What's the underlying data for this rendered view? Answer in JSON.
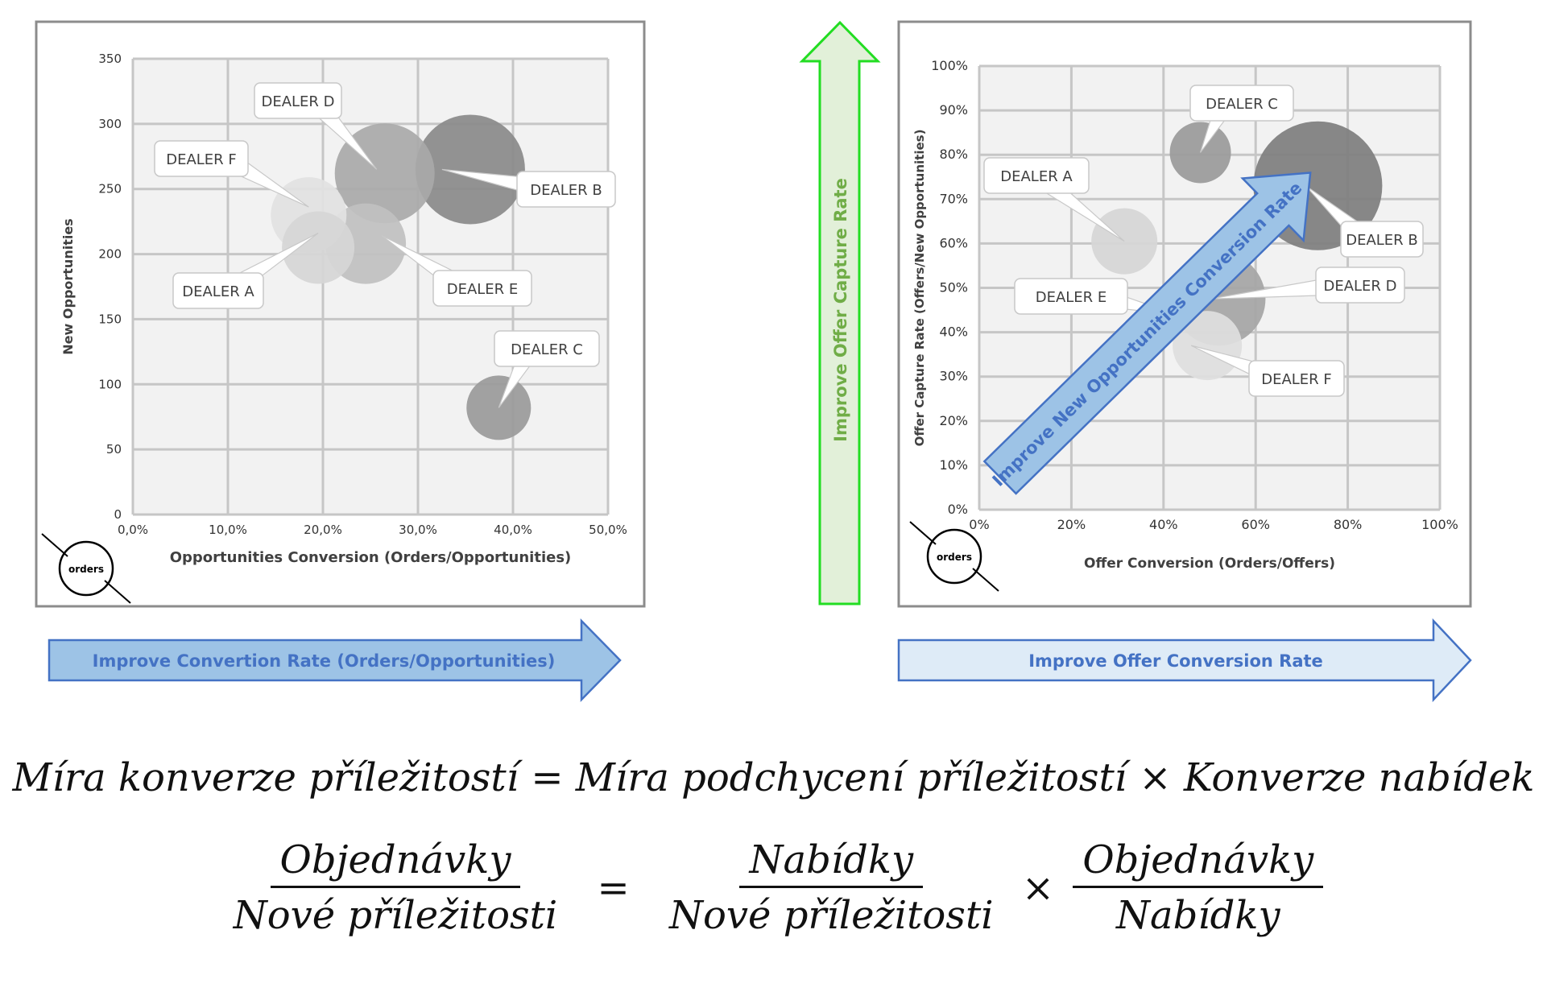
{
  "chart_data": [
    {
      "type": "bubble",
      "xlabel": "Opportunities Conversion (Orders/Opportunities)",
      "ylabel": "New Opportunities",
      "xlim": [
        0,
        50
      ],
      "ylim": [
        0,
        350
      ],
      "x_ticks": [
        "0,0%",
        "10,0%",
        "20,0%",
        "30,0%",
        "40,0%",
        "50,0%"
      ],
      "y_ticks": [
        "0",
        "50",
        "100",
        "150",
        "200",
        "250",
        "300",
        "350"
      ],
      "grid": true,
      "size_legend": "orders",
      "points": [
        {
          "label": "DEALER A",
          "x": 19.5,
          "y": 205,
          "r": 45,
          "color": "#d6d6d6"
        },
        {
          "label": "DEALER B",
          "x": 35.5,
          "y": 265,
          "r": 68,
          "color": "#8a8a8a"
        },
        {
          "label": "DEALER C",
          "x": 38.5,
          "y": 82,
          "r": 40,
          "color": "#9a9a9a"
        },
        {
          "label": "DEALER D",
          "x": 26.5,
          "y": 262,
          "r": 62,
          "color": "#a9a9a9"
        },
        {
          "label": "DEALER E",
          "x": 24.5,
          "y": 208,
          "r": 50,
          "color": "#c0c0c0"
        },
        {
          "label": "DEALER F",
          "x": 18.5,
          "y": 230,
          "r": 47,
          "color": "#e2e2e2"
        }
      ]
    },
    {
      "type": "bubble",
      "xlabel": "Offer Conversion (Orders/Offers)",
      "ylabel": "Offer Capture Rate (Offers/New Opportunities)",
      "xlim": [
        0,
        100
      ],
      "ylim": [
        0,
        100
      ],
      "x_ticks": [
        "0%",
        "20%",
        "40%",
        "60%",
        "80%",
        "100%"
      ],
      "y_ticks": [
        "0%",
        "10%",
        "20%",
        "30%",
        "40%",
        "50%",
        "60%",
        "70%",
        "80%",
        "90%",
        "100%"
      ],
      "grid": true,
      "size_legend": "orders",
      "points": [
        {
          "label": "DEALER A",
          "x": 31.5,
          "y": 60.5,
          "r": 41,
          "color": "#d6d6d6"
        },
        {
          "label": "DEALER B",
          "x": 73.5,
          "y": 73,
          "r": 80,
          "color": "#7e7e7e"
        },
        {
          "label": "DEALER C",
          "x": 48,
          "y": 80.5,
          "r": 38,
          "color": "#9a9a9a"
        },
        {
          "label": "DEALER D",
          "x": 52,
          "y": 47.5,
          "r": 58,
          "color": "#a5a5a5"
        },
        {
          "label": "DEALER E",
          "x": 41,
          "y": 44,
          "r": 20,
          "color": "#c9c9c9"
        },
        {
          "label": "DEALER F",
          "x": 49.5,
          "y": 37,
          "r": 43,
          "color": "#dedede"
        }
      ]
    }
  ],
  "arrows": {
    "left_horizontal": "Improve Convertion Rate (Orders/Opportunities)",
    "vertical": "Improve Offer Capture Rate",
    "right_horizontal": "Improve Offer Conversion Rate",
    "diagonal": "Improve New Opportunities Conversion Rate"
  },
  "colors": {
    "blue_fill": "#9dc3e6",
    "blue_light_fill": "#deebf7",
    "blue_stroke": "#4472c4",
    "blue_text": "#4472c4",
    "green_stroke": "#22dd22",
    "green_fill": "#e2f0d9",
    "green_text": "#70ad47"
  },
  "formulas": {
    "line1": "Míra konverze příležitostí = Míra podchycení příležitostí × Konverze nabídek",
    "lhs_num": "Objednávky",
    "lhs_den": "Nové příležitosti",
    "eq": "=",
    "r1_num": "Nabídky",
    "r1_den": "Nové příležitosti",
    "times": "×",
    "r2_num": "Objednávky",
    "r2_den": "Nabídky"
  }
}
